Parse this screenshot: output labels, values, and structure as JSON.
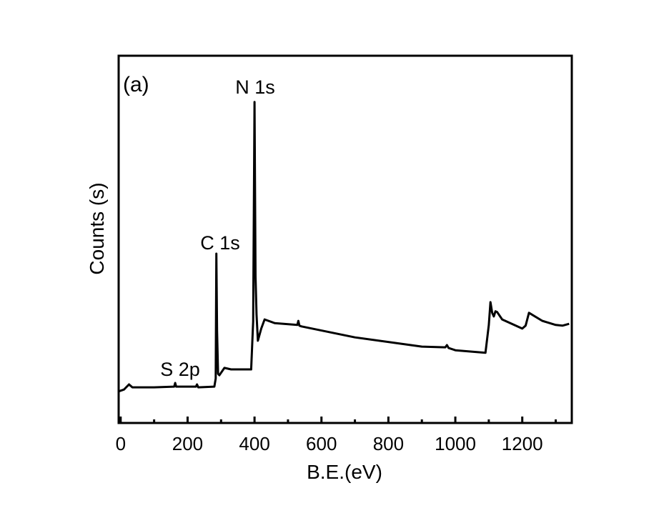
{
  "chart_data": {
    "type": "line",
    "panel_label": "(a)",
    "xlabel": "B.E.(eV)",
    "ylabel": "Counts (s)",
    "xlim": [
      -6,
      1348
    ],
    "ylim": [
      0,
      100
    ],
    "x_ticks": [
      0,
      200,
      400,
      600,
      800,
      1000,
      1200
    ],
    "x_tick_labels": [
      "0",
      "200",
      "400",
      "600",
      "800",
      "1000",
      "1200"
    ],
    "x_minor_ticks": [
      100,
      300,
      500,
      700,
      900,
      1100,
      1300
    ],
    "y_ticks": [],
    "grid": false,
    "line_color": "#000000",
    "annotations": [
      {
        "text": "N 1s",
        "x": 400,
        "y": 87.4
      },
      {
        "text": "C 1s",
        "x": 286,
        "y": 46.1
      },
      {
        "text": "S 2p",
        "x": 165,
        "y": 10.9
      }
    ],
    "series": [
      {
        "x": [
          -5,
          0,
          10,
          25,
          35,
          100,
          160,
          163,
          166,
          225,
          228,
          232,
          280,
          284,
          286,
          288,
          291,
          295,
          310,
          330,
          390,
          396,
          400,
          403,
          406,
          410,
          420,
          430,
          460,
          528,
          531,
          534,
          540,
          700,
          900,
          970,
          975,
          980,
          1000,
          1090,
          1100,
          1105,
          1110,
          1115,
          1120,
          1125,
          1140,
          1200,
          1210,
          1220,
          1260,
          1300,
          1320,
          1340
        ],
        "y": [
          8.6,
          8.8,
          9.1,
          10.5,
          9.7,
          9.7,
          9.9,
          10.9,
          9.9,
          9.9,
          10.5,
          9.7,
          9.9,
          12.1,
          46.1,
          25.0,
          13.4,
          13.0,
          15.0,
          14.6,
          14.6,
          27.6,
          87.4,
          40.0,
          29.6,
          22.4,
          25.7,
          28.2,
          27.2,
          26.7,
          27.8,
          26.5,
          26.3,
          23.3,
          20.8,
          20.6,
          21.2,
          20.4,
          19.8,
          19.1,
          26.7,
          32.9,
          30.0,
          29.0,
          30.4,
          30.2,
          28.2,
          25.7,
          26.5,
          30.0,
          27.8,
          26.7,
          26.5,
          27.0
        ]
      }
    ]
  }
}
